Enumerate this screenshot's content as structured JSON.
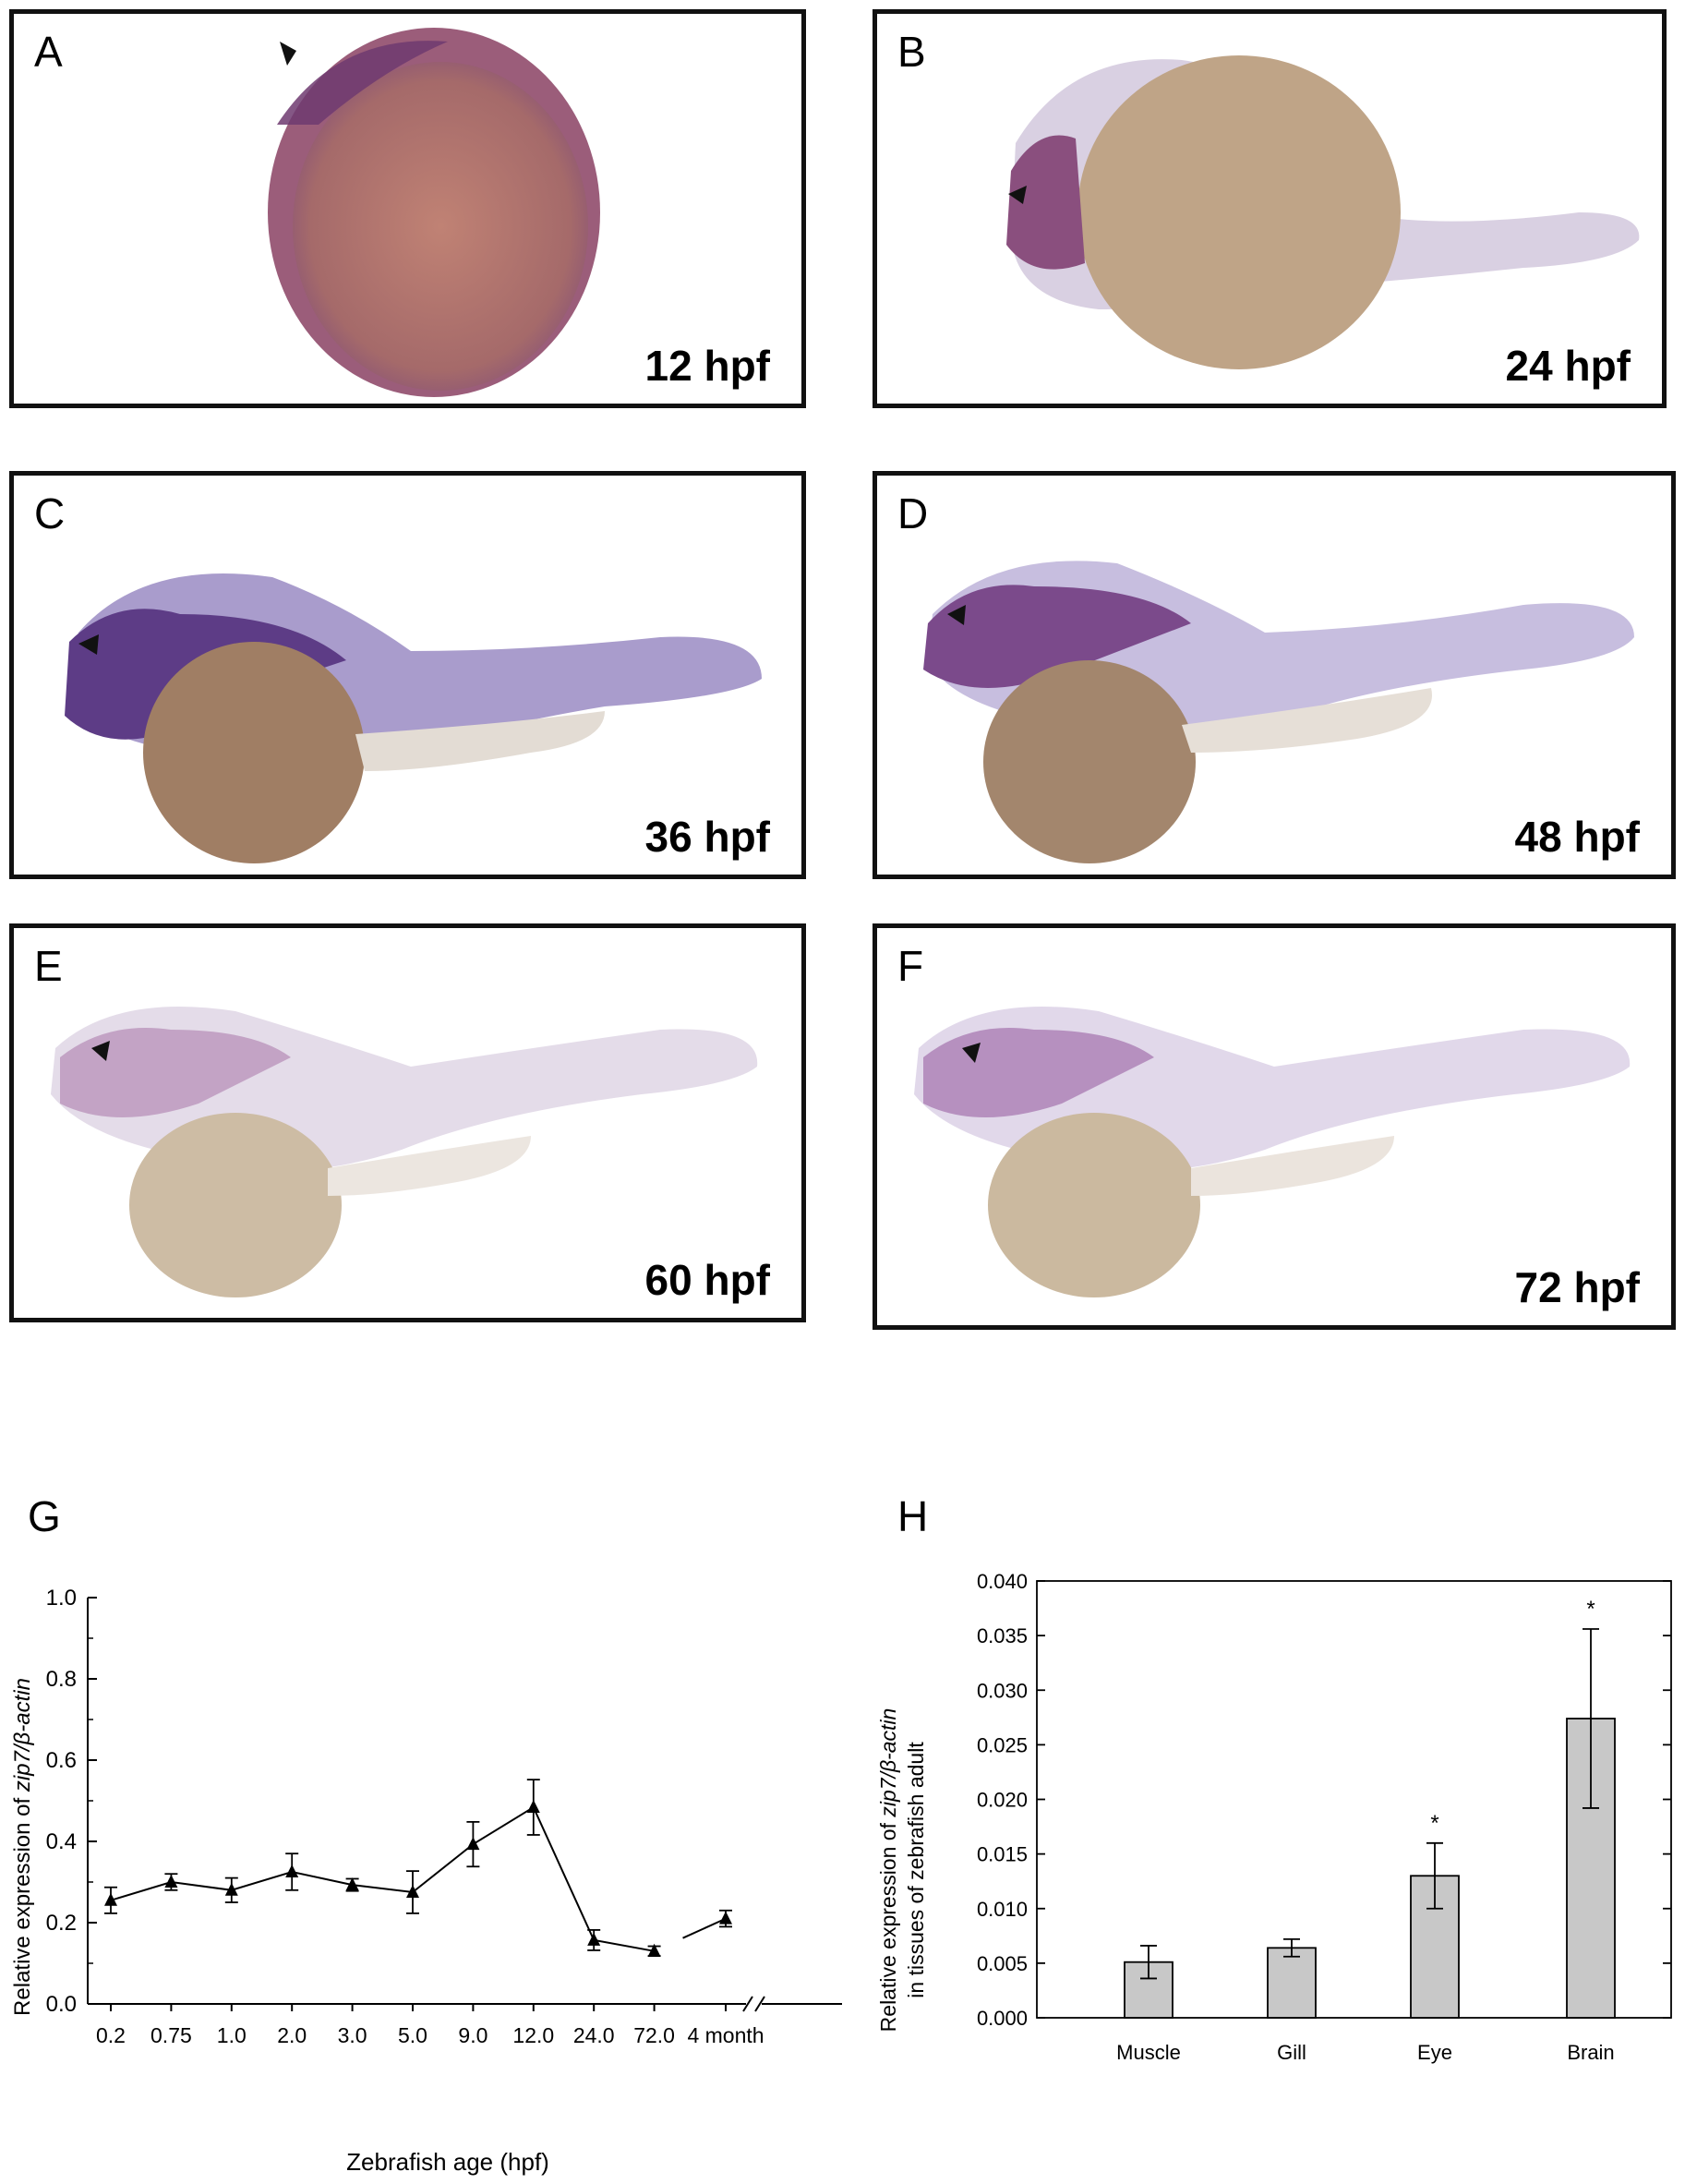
{
  "panels": [
    {
      "letter": "A",
      "stage": "12 hpf"
    },
    {
      "letter": "B",
      "stage": "24 hpf"
    },
    {
      "letter": "C",
      "stage": "36 hpf"
    },
    {
      "letter": "D",
      "stage": "48 hpf"
    },
    {
      "letter": "E",
      "stage": "60 hpf"
    },
    {
      "letter": "F",
      "stage": "72 hpf"
    }
  ],
  "chart_g_label": "G",
  "chart_h_label": "H",
  "colors": {
    "stain": "#7a3f7f",
    "yolk": "#b59a7e",
    "bar": "#c8c8c8"
  },
  "chart_data": [
    {
      "type": "line",
      "categories": [
        "0.2",
        "0.75",
        "1.0",
        "2.0",
        "3.0",
        "5.0",
        "9.0",
        "12.0",
        "24.0",
        "72.0",
        "4 month"
      ],
      "series": [
        {
          "values": [
            0.255,
            0.3,
            0.28,
            0.325,
            0.293,
            0.275,
            0.393,
            0.484,
            0.157,
            0.13,
            0.21
          ],
          "errors": [
            0.032,
            0.02,
            0.03,
            0.045,
            0.015,
            0.052,
            0.055,
            0.068,
            0.025,
            0.012,
            0.02
          ]
        }
      ],
      "xlabel": "Zebrafish age (hpf)",
      "ylabel": "Relative expression of zip7/β-actin",
      "ylabel_plain": "Relative expression of ",
      "ylabel_italic": "zip7/β-actin",
      "yticks": [
        "0.0",
        "0.2",
        "0.4",
        "0.6",
        "0.8",
        "1.0"
      ],
      "ylim": [
        0,
        1.0
      ],
      "axis_break": true
    },
    {
      "type": "bar",
      "categories": [
        "Muscle",
        "Gill",
        "Eye",
        "Brain"
      ],
      "values": [
        0.0051,
        0.0064,
        0.013,
        0.0274
      ],
      "errors": [
        0.0015,
        0.0008,
        0.003,
        0.0082
      ],
      "significance": [
        "",
        "",
        "*",
        "*"
      ],
      "ylabel_line1_plain": "Relative expression of ",
      "ylabel_line1_italic": "zip7/β-actin",
      "ylabel_line2": "in tissues of zebrafish adult",
      "yticks": [
        "0.000",
        "0.005",
        "0.010",
        "0.015",
        "0.020",
        "0.025",
        "0.030",
        "0.035",
        "0.040"
      ],
      "ylim": [
        0,
        0.04
      ]
    }
  ]
}
